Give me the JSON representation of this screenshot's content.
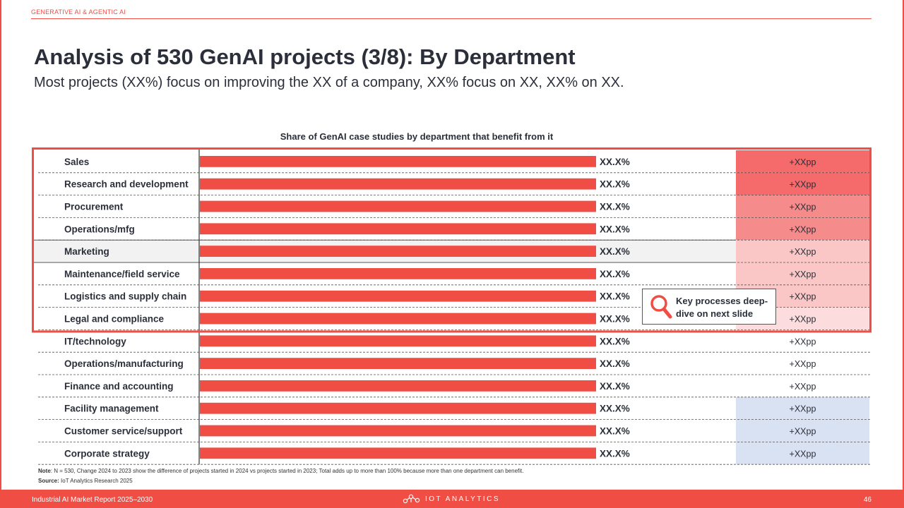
{
  "header": {
    "section": "GENERATIVE AI & AGENTIC AI",
    "title": "Analysis of 530 GenAI projects (3/8): By Department",
    "subtitle": "Most projects (XX%) focus on improving the XX of a company, XX% focus on XX, XX% on XX."
  },
  "chart_data": {
    "type": "bar",
    "orientation": "horizontal",
    "title": "Share of GenAI case studies by department that benefit from it",
    "categories": [
      "Sales",
      "Research and development",
      "Procurement",
      "Operations/mfg",
      "Marketing",
      "Maintenance/field service",
      "Logistics and supply chain",
      "Legal and compliance",
      "IT/technology",
      "Operations/manufacturing",
      "Finance and accounting",
      "Facility management",
      "Customer service/support",
      "Corporate strategy"
    ],
    "values": [
      1,
      1,
      1,
      1,
      1,
      1,
      1,
      1,
      1,
      1,
      1,
      1,
      1,
      1
    ],
    "value_labels": [
      "XX.X%",
      "XX.X%",
      "XX.X%",
      "XX.X%",
      "XX.X%",
      "XX.X%",
      "XX.X%",
      "XX.X%",
      "XX.X%",
      "XX.X%",
      "XX.X%",
      "XX.X%",
      "XX.X%",
      "XX.X%"
    ],
    "change_labels": [
      "+XXpp",
      "+XXpp",
      "+XXpp",
      "+XXpp",
      "+XXpp",
      "+XXpp",
      "+XXpp",
      "+XXpp",
      "+XXpp",
      "+XXpp",
      "+XXpp",
      "+XXpp",
      "+XXpp",
      "+XXpp"
    ],
    "change_colors": [
      "#f56b6b",
      "#f56b6b",
      "#f68b8b",
      "#f68b8b",
      "#fbc6c6",
      "#fbc6c6",
      "#fbc6c6",
      "#fcdcdc",
      "#ffffff",
      "#ffffff",
      "#ffffff",
      "#d9e2f2",
      "#d9e2f2",
      "#d9e2f2"
    ],
    "highlighted_category": "Marketing",
    "highlight_group_size": 8,
    "bar_color": "#f04e45"
  },
  "callout": {
    "icon": "magnifier-icon",
    "text": "Key processes deep-dive on next slide"
  },
  "notes": {
    "note_label": "Note",
    "note_text": ": N = 530, Change 2024 to 2023 show the difference of projects started in 2024 vs projects started in 2023; Total adds up to more than 100% because more than one department can benefit.",
    "source_label": "Source:",
    "source_text": " IoT Analytics Research 2025"
  },
  "footer": {
    "report": "Industrial AI Market Report 2025–2030",
    "logo_text": "IOT ANALYTICS",
    "page": "46"
  },
  "colors": {
    "accent": "#f04e45",
    "text": "#2b2f3a"
  }
}
